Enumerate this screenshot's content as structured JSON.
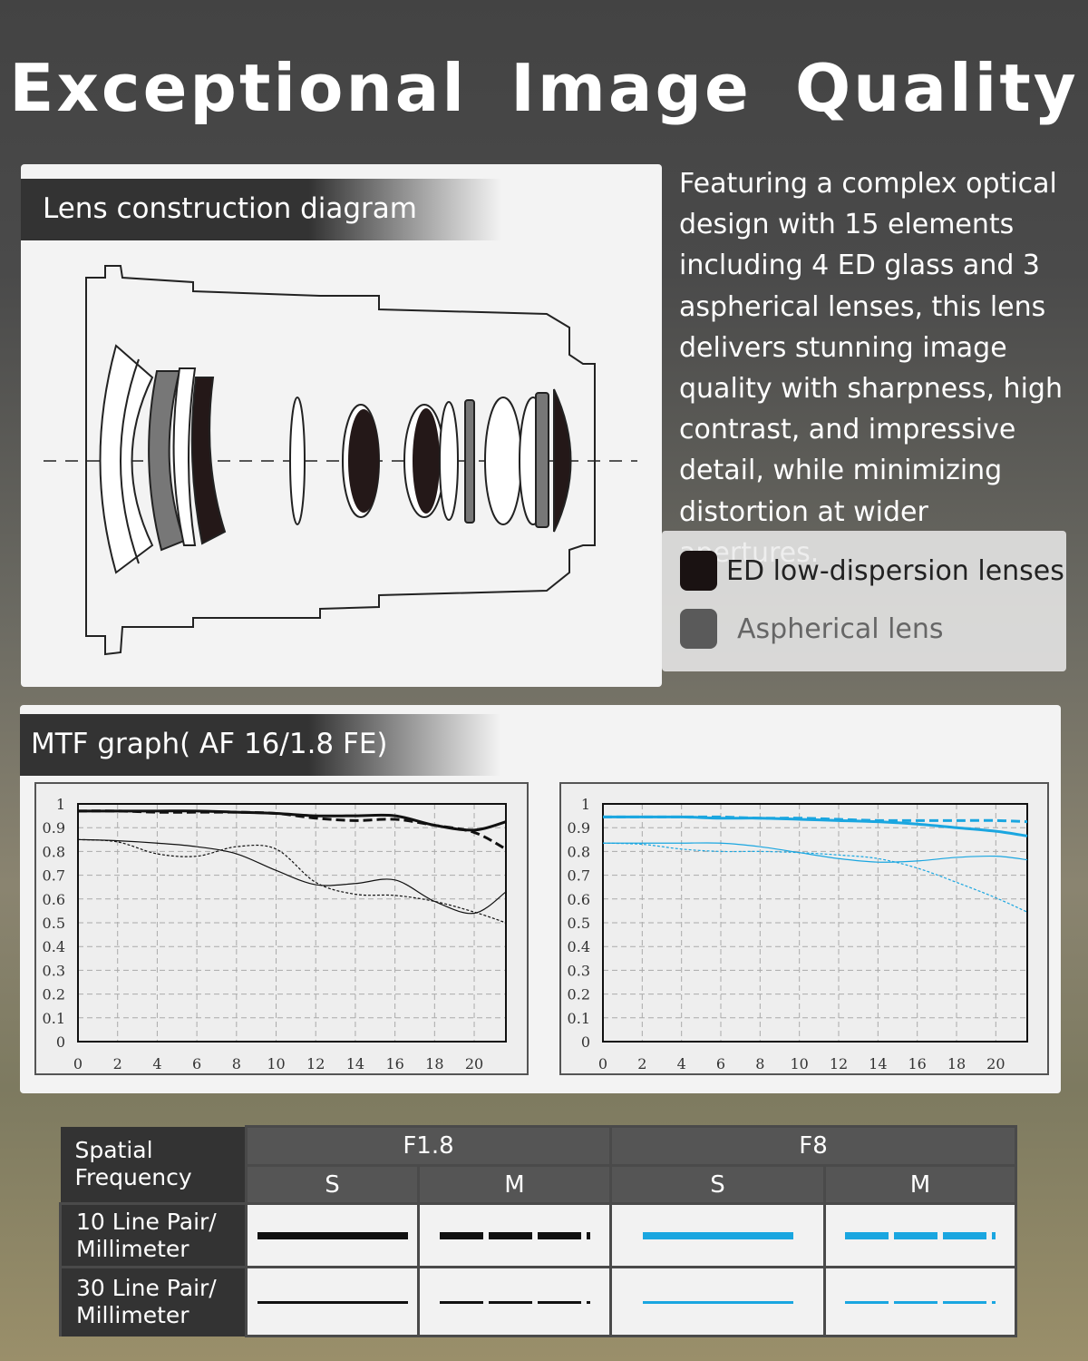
{
  "title": "Exceptional Image Quality",
  "lens_panel": {
    "header": "Lens construction diagram"
  },
  "description": "Featuring a complex optical design with 15 elements including 4 ED glass and 3 aspherical lenses, this lens delivers stunning image quality with sharpness, high contrast, and impressive detail, while minimizing distortion at wider apertures.",
  "legend": [
    {
      "label": "ED low-dispersion lenses",
      "color": "#1a1212"
    },
    {
      "label": "Aspherical lens",
      "color": "#5a5a5a"
    }
  ],
  "mtf_panel": {
    "header": "MTF graph( AF 16/1.8 FE)"
  },
  "chart_data": [
    {
      "type": "line",
      "aperture": "F1.8",
      "xlim": [
        0,
        21.6
      ],
      "ylim": [
        0,
        1
      ],
      "grid": true,
      "xticks": [
        "0",
        "2",
        "4",
        "6",
        "8",
        "10",
        "12",
        "14",
        "16",
        "18",
        "20"
      ],
      "yticks": [
        "0",
        "0.1",
        "0.2",
        "0.3",
        "0.4",
        "0.5",
        "0.6",
        "0.7",
        "0.8",
        "0.9",
        "1"
      ],
      "x": [
        0,
        2,
        4,
        6,
        8,
        10,
        12,
        14,
        16,
        18,
        20,
        21.6
      ],
      "color": "#111111",
      "series": [
        {
          "values": [
            0.97,
            0.97,
            0.97,
            0.97,
            0.965,
            0.96,
            0.95,
            0.95,
            0.95,
            0.91,
            0.89,
            0.925
          ],
          "style": "thick-solid"
        },
        {
          "values": [
            0.97,
            0.97,
            0.965,
            0.965,
            0.965,
            0.96,
            0.94,
            0.93,
            0.935,
            0.91,
            0.88,
            0.81
          ],
          "style": "thick-dashed"
        },
        {
          "values": [
            0.85,
            0.845,
            0.835,
            0.82,
            0.79,
            0.72,
            0.66,
            0.665,
            0.68,
            0.59,
            0.54,
            0.63
          ],
          "style": "thin-solid"
        },
        {
          "values": [
            0.85,
            0.84,
            0.79,
            0.78,
            0.82,
            0.81,
            0.67,
            0.62,
            0.615,
            0.59,
            0.545,
            0.5
          ],
          "style": "thin-dashed"
        }
      ]
    },
    {
      "type": "line",
      "aperture": "F8",
      "xlim": [
        0,
        21.6
      ],
      "ylim": [
        0,
        1
      ],
      "grid": true,
      "xticks": [
        "0",
        "2",
        "4",
        "6",
        "8",
        "10",
        "12",
        "14",
        "16",
        "18",
        "20"
      ],
      "yticks": [
        "0",
        "0.1",
        "0.2",
        "0.3",
        "0.4",
        "0.5",
        "0.6",
        "0.7",
        "0.8",
        "0.9",
        "1"
      ],
      "x": [
        0,
        2,
        4,
        6,
        8,
        10,
        12,
        14,
        16,
        18,
        20,
        21.6
      ],
      "color": "#1aa6e0",
      "series": [
        {
          "values": [
            0.945,
            0.945,
            0.945,
            0.94,
            0.94,
            0.935,
            0.93,
            0.925,
            0.915,
            0.9,
            0.885,
            0.865
          ],
          "style": "thick-solid"
        },
        {
          "values": [
            0.945,
            0.945,
            0.945,
            0.945,
            0.94,
            0.94,
            0.935,
            0.93,
            0.93,
            0.93,
            0.93,
            0.925
          ],
          "style": "thick-dashed"
        },
        {
          "values": [
            0.835,
            0.835,
            0.835,
            0.835,
            0.82,
            0.795,
            0.77,
            0.755,
            0.76,
            0.775,
            0.78,
            0.765
          ],
          "style": "thin-solid"
        },
        {
          "values": [
            0.835,
            0.83,
            0.81,
            0.8,
            0.8,
            0.795,
            0.785,
            0.77,
            0.73,
            0.67,
            0.605,
            0.545
          ],
          "style": "thin-dashed"
        }
      ]
    }
  ],
  "table": {
    "corner": "Spatial Frequency",
    "apertures": [
      "F1.8",
      "F8"
    ],
    "sub": [
      "S",
      "M",
      "S",
      "M"
    ],
    "rows": [
      "10 Line Pair/ Millimeter",
      "30 Line Pair/ Millimeter"
    ]
  }
}
